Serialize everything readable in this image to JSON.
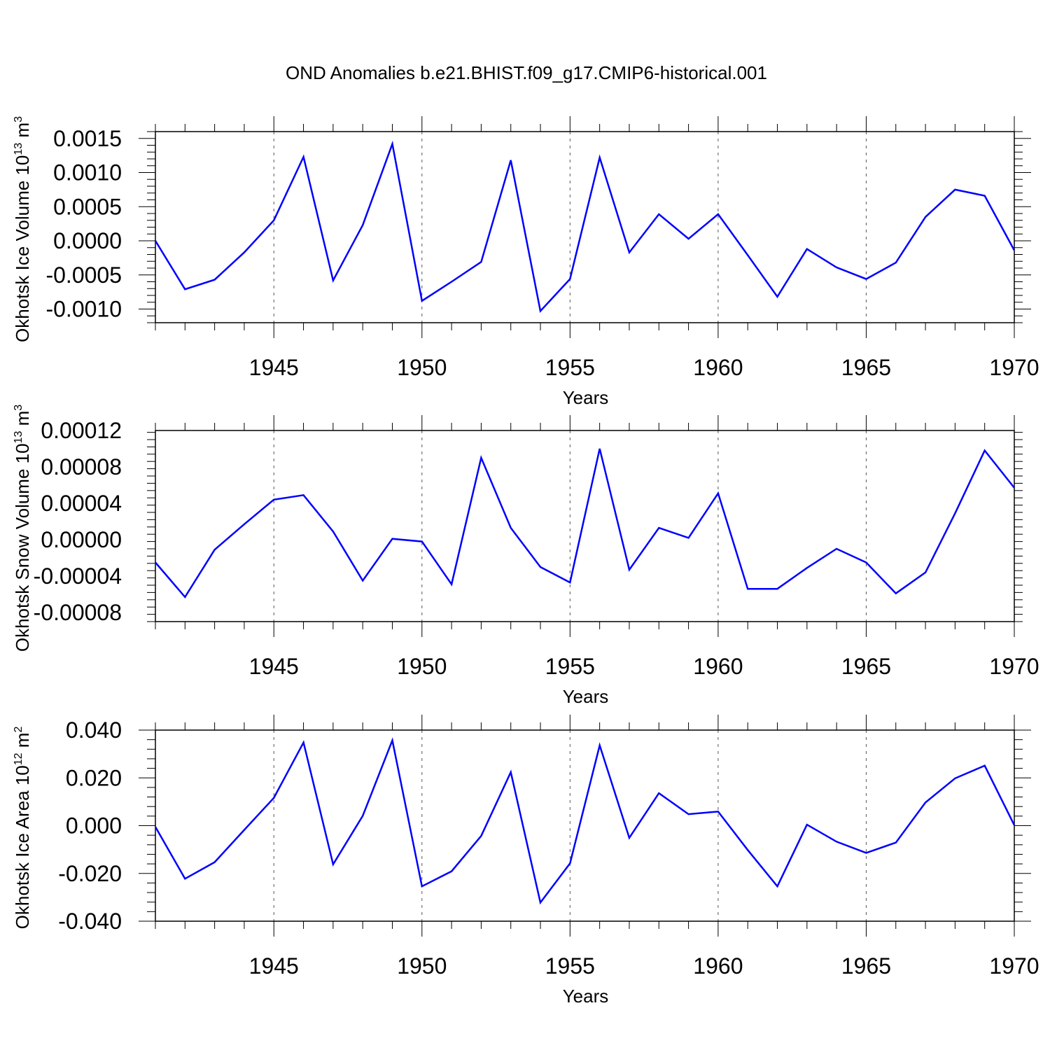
{
  "title": "OND Anomalies b.e21.BHIST.f09_g17.CMIP6-historical.001",
  "chart_data": [
    {
      "type": "line",
      "title": "OND Anomalies b.e21.BHIST.f09_g17.CMIP6-historical.001",
      "xlabel": "Years",
      "ylabel": "Okhotsk Ice Volume 10",
      "ylabel_sup": "13",
      "ylabel_unit": " m",
      "ylabel_unit_sup": "3",
      "xlim": [
        1941,
        1970
      ],
      "ylim": [
        -0.0012,
        0.0016
      ],
      "xticks": [
        1945,
        1950,
        1955,
        1960,
        1965,
        1970
      ],
      "yticks": [
        -0.001,
        -0.0005,
        0.0,
        0.0005,
        0.001,
        0.0015
      ],
      "ytick_labels": [
        "-0.0010",
        "-0.0005",
        "0.0000",
        "0.0005",
        "0.0010",
        "0.0015"
      ],
      "x": [
        1941,
        1942,
        1943,
        1944,
        1945,
        1946,
        1947,
        1948,
        1949,
        1950,
        1951,
        1952,
        1953,
        1954,
        1955,
        1956,
        1957,
        1958,
        1959,
        1960,
        1961,
        1962,
        1963,
        1964,
        1965,
        1966,
        1967,
        1968,
        1969,
        1970
      ],
      "series": [
        {
          "name": "Okhotsk Ice Volume",
          "color": "#0000ff",
          "values": [
            0.0,
            -0.00071,
            -0.00057,
            -0.00017,
            0.0003,
            0.00123,
            -0.00058,
            0.00023,
            0.00142,
            -0.00088,
            -0.0006,
            -0.00031,
            0.00118,
            -0.00103,
            -0.00056,
            0.00122,
            -0.00017,
            0.00039,
            3e-05,
            0.00039,
            -0.00021,
            -0.00082,
            -0.00012,
            -0.00039,
            -0.00056,
            -0.00032,
            0.00035,
            0.00075,
            0.00066,
            -0.00014
          ]
        }
      ]
    },
    {
      "type": "line",
      "xlabel": "Years",
      "ylabel": "Okhotsk Snow Volume 10",
      "ylabel_sup": "13",
      "ylabel_unit": " m",
      "ylabel_unit_sup": "3",
      "xlim": [
        1941,
        1970
      ],
      "ylim": [
        -9e-05,
        0.00012
      ],
      "xticks": [
        1945,
        1950,
        1955,
        1960,
        1965,
        1970
      ],
      "yticks": [
        -8e-05,
        -4e-05,
        0.0,
        4e-05,
        8e-05,
        0.00012
      ],
      "ytick_labels": [
        "-0.00008",
        "-0.00004",
        "0.00000",
        "0.00004",
        "0.00008",
        "0.00012"
      ],
      "x": [
        1941,
        1942,
        1943,
        1944,
        1945,
        1946,
        1947,
        1948,
        1949,
        1950,
        1951,
        1952,
        1953,
        1954,
        1955,
        1956,
        1957,
        1958,
        1959,
        1960,
        1961,
        1962,
        1963,
        1964,
        1965,
        1966,
        1967,
        1968,
        1969,
        1970
      ],
      "series": [
        {
          "name": "Okhotsk Snow Volume",
          "color": "#0000ff",
          "values": [
            -2.5e-05,
            -6.3e-05,
            -1.1e-05,
            1.7e-05,
            4.4e-05,
            4.9e-05,
            9e-06,
            -4.5e-05,
            1e-06,
            -2e-06,
            -4.9e-05,
            9e-05,
            1.3e-05,
            -3e-05,
            -4.7e-05,
            0.0001,
            -3.3e-05,
            1.3e-05,
            2e-06,
            5.1e-05,
            -5.4e-05,
            -5.4e-05,
            -3.1e-05,
            -1e-05,
            -2.5e-05,
            -5.9e-05,
            -3.6e-05,
            2.9e-05,
            9.8e-05,
            5.7e-05
          ]
        }
      ]
    },
    {
      "type": "line",
      "xlabel": "Years",
      "ylabel": "Okhotsk Ice Area 10",
      "ylabel_sup": "12",
      "ylabel_unit": " m",
      "ylabel_unit_sup": "2",
      "xlim": [
        1941,
        1970
      ],
      "ylim": [
        -0.04,
        0.04
      ],
      "xticks": [
        1945,
        1950,
        1955,
        1960,
        1965,
        1970
      ],
      "yticks": [
        -0.04,
        -0.02,
        0.0,
        0.02,
        0.04
      ],
      "ytick_labels": [
        "-0.040",
        "-0.020",
        "0.000",
        "0.020",
        "0.040"
      ],
      "x": [
        1941,
        1942,
        1943,
        1944,
        1945,
        1946,
        1947,
        1948,
        1949,
        1950,
        1951,
        1952,
        1953,
        1954,
        1955,
        1956,
        1957,
        1958,
        1959,
        1960,
        1961,
        1962,
        1963,
        1964,
        1965,
        1966,
        1967,
        1968,
        1969,
        1970
      ],
      "series": [
        {
          "name": "Okhotsk Ice Area",
          "color": "#0000ff",
          "values": [
            -0.0005,
            -0.0222,
            -0.0153,
            -0.0018,
            0.0116,
            0.0348,
            -0.0162,
            0.0041,
            0.0357,
            -0.0254,
            -0.0191,
            -0.0043,
            0.0224,
            -0.0322,
            -0.0158,
            0.0336,
            -0.0051,
            0.0136,
            0.0048,
            0.0059,
            -0.0102,
            -0.0254,
            0.0004,
            -0.0067,
            -0.0114,
            -0.0071,
            0.0097,
            0.0198,
            0.0251,
            0.0002
          ]
        }
      ]
    }
  ]
}
